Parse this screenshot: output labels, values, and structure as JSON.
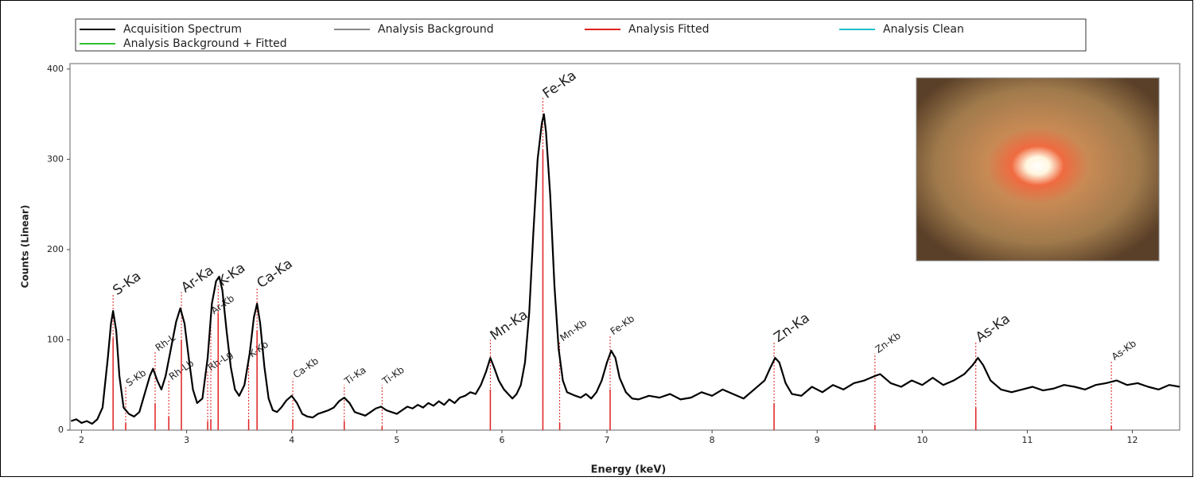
{
  "chart_data": {
    "type": "line",
    "xlabel": "Energy (keV)",
    "ylabel": "Counts (Linear)",
    "xlim": [
      1.89,
      12.45
    ],
    "ylim": [
      0,
      406
    ],
    "xticks": [
      2,
      3,
      4,
      5,
      6,
      7,
      8,
      9,
      10,
      11,
      12
    ],
    "yticks": [
      0,
      100,
      200,
      300,
      400
    ],
    "legend": [
      {
        "name": "Acquisition Spectrum",
        "color": "#000000"
      },
      {
        "name": "Analysis Background",
        "color": "#888888"
      },
      {
        "name": "Analysis Fitted",
        "color": "#e02020"
      },
      {
        "name": "Analysis Clean",
        "color": "#20c0d0"
      },
      {
        "name": "Analysis Background + Fitted",
        "color": "#30c030"
      }
    ],
    "x": [
      1.9,
      1.95,
      2.0,
      2.05,
      2.1,
      2.15,
      2.2,
      2.25,
      2.28,
      2.3,
      2.33,
      2.36,
      2.4,
      2.45,
      2.5,
      2.55,
      2.6,
      2.65,
      2.68,
      2.72,
      2.76,
      2.8,
      2.85,
      2.9,
      2.94,
      2.98,
      3.02,
      3.06,
      3.1,
      3.15,
      3.2,
      3.24,
      3.28,
      3.31,
      3.34,
      3.38,
      3.42,
      3.46,
      3.5,
      3.55,
      3.6,
      3.64,
      3.67,
      3.7,
      3.74,
      3.78,
      3.82,
      3.86,
      3.9,
      3.95,
      4.0,
      4.05,
      4.1,
      4.15,
      4.2,
      4.25,
      4.3,
      4.35,
      4.4,
      4.45,
      4.5,
      4.55,
      4.6,
      4.65,
      4.7,
      4.75,
      4.8,
      4.85,
      4.9,
      4.95,
      5.0,
      5.05,
      5.1,
      5.15,
      5.2,
      5.25,
      5.3,
      5.35,
      5.4,
      5.45,
      5.5,
      5.55,
      5.6,
      5.65,
      5.7,
      5.75,
      5.8,
      5.85,
      5.89,
      5.93,
      5.97,
      6.02,
      6.06,
      6.1,
      6.14,
      6.18,
      6.22,
      6.26,
      6.3,
      6.34,
      6.38,
      6.4,
      6.42,
      6.46,
      6.5,
      6.54,
      6.58,
      6.62,
      6.66,
      6.7,
      6.75,
      6.8,
      6.85,
      6.9,
      6.95,
      7.0,
      7.04,
      7.08,
      7.12,
      7.18,
      7.24,
      7.3,
      7.4,
      7.5,
      7.6,
      7.7,
      7.8,
      7.9,
      8.0,
      8.1,
      8.2,
      8.3,
      8.4,
      8.5,
      8.55,
      8.6,
      8.64,
      8.7,
      8.76,
      8.85,
      8.95,
      9.05,
      9.15,
      9.25,
      9.35,
      9.45,
      9.55,
      9.6,
      9.7,
      9.8,
      9.9,
      10.0,
      10.1,
      10.2,
      10.3,
      10.4,
      10.48,
      10.53,
      10.58,
      10.65,
      10.75,
      10.85,
      10.95,
      11.05,
      11.15,
      11.25,
      11.35,
      11.45,
      11.55,
      11.65,
      11.75,
      11.85,
      11.95,
      12.05,
      12.15,
      12.25,
      12.35,
      12.45
    ],
    "series": [
      {
        "name": "Acquisition Spectrum",
        "color": "#000000",
        "values": [
          10,
          12,
          8,
          10,
          7,
          12,
          25,
          80,
          118,
          132,
          110,
          60,
          25,
          18,
          15,
          20,
          40,
          60,
          68,
          55,
          45,
          60,
          90,
          120,
          135,
          118,
          80,
          45,
          30,
          35,
          80,
          140,
          165,
          170,
          155,
          110,
          70,
          45,
          38,
          50,
          85,
          125,
          140,
          118,
          70,
          35,
          22,
          20,
          25,
          33,
          38,
          30,
          18,
          15,
          14,
          18,
          20,
          22,
          25,
          32,
          36,
          30,
          20,
          18,
          16,
          20,
          24,
          26,
          22,
          20,
          18,
          22,
          26,
          24,
          28,
          25,
          30,
          27,
          32,
          28,
          34,
          30,
          36,
          38,
          42,
          40,
          50,
          65,
          80,
          68,
          55,
          45,
          40,
          35,
          40,
          50,
          75,
          130,
          220,
          300,
          340,
          350,
          330,
          260,
          160,
          90,
          55,
          42,
          40,
          38,
          36,
          40,
          35,
          42,
          55,
          75,
          88,
          80,
          58,
          42,
          35,
          34,
          38,
          36,
          40,
          34,
          36,
          42,
          38,
          45,
          40,
          35,
          45,
          55,
          68,
          80,
          75,
          52,
          40,
          38,
          48,
          42,
          50,
          45,
          52,
          55,
          60,
          62,
          52,
          48,
          55,
          50,
          58,
          50,
          55,
          62,
          72,
          80,
          72,
          55,
          45,
          42,
          45,
          48,
          44,
          46,
          50,
          48,
          45,
          50,
          52,
          55,
          50,
          52,
          48,
          45,
          50,
          48
        ]
      }
    ],
    "peaks": [
      {
        "label": "S-Ka",
        "energy": 2.3,
        "height": 150,
        "fitted": 102
      },
      {
        "label": "S-Kb",
        "energy": 2.42,
        "height": 48,
        "fitted": 8
      },
      {
        "label": "Rh-L",
        "energy": 2.7,
        "height": 87,
        "fitted": 30
      },
      {
        "label": "Rh-Lb",
        "energy": 2.83,
        "height": 55,
        "fitted": 15
      },
      {
        "label": "Ar-Ka",
        "energy": 2.95,
        "height": 153,
        "fitted": 100
      },
      {
        "label": "Rh-Lg",
        "energy": 3.2,
        "height": 65,
        "fitted": 10
      },
      {
        "label": "Ar-Kb",
        "energy": 3.23,
        "height": 128,
        "fitted": 12
      },
      {
        "label": "K-Ka",
        "energy": 3.3,
        "height": 160,
        "fitted": 130
      },
      {
        "label": "K-Kb",
        "energy": 3.59,
        "height": 80,
        "fitted": 12
      },
      {
        "label": "Ca-Ka",
        "energy": 3.67,
        "height": 158,
        "fitted": 110
      },
      {
        "label": "Ca-Kb",
        "energy": 4.01,
        "height": 57,
        "fitted": 12
      },
      {
        "label": "Ti-Ka",
        "energy": 4.5,
        "height": 50,
        "fitted": 10
      },
      {
        "label": "Ti-Kb",
        "energy": 4.86,
        "height": 50,
        "fitted": 4
      },
      {
        "label": "Mn-Ka",
        "energy": 5.89,
        "height": 100,
        "fitted": 45
      },
      {
        "label": "Fe-Ka",
        "energy": 6.39,
        "height": 368,
        "fitted": 310
      },
      {
        "label": "Mn-Kb",
        "energy": 6.55,
        "height": 98,
        "fitted": 8
      },
      {
        "label": "Fe-Kb",
        "energy": 7.03,
        "height": 105,
        "fitted": 45
      },
      {
        "label": "Zn-Ka",
        "energy": 8.59,
        "height": 98,
        "fitted": 30
      },
      {
        "label": "Zn-Kb",
        "energy": 9.55,
        "height": 85,
        "fitted": 6
      },
      {
        "label": "As-Ka",
        "energy": 10.51,
        "height": 98,
        "fitted": 25
      },
      {
        "label": "As-Kb",
        "energy": 11.8,
        "height": 77,
        "fitted": 5
      }
    ]
  }
}
